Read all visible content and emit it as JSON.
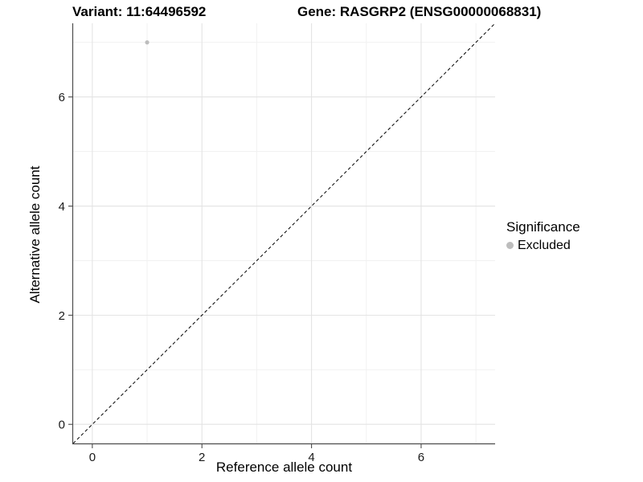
{
  "chart_data": {
    "type": "scatter",
    "title_left": "Variant: 11:64496592",
    "title_right": "Gene: RASGRP2 (ENSG00000068831)",
    "xlabel": "Reference allele count",
    "ylabel": "Alternative allele count",
    "xlim": [
      -0.35,
      7.35
    ],
    "ylim": [
      -0.35,
      7.35
    ],
    "x_major_ticks": [
      0,
      2,
      4,
      6
    ],
    "y_major_ticks": [
      0,
      2,
      4,
      6
    ],
    "x_minor_gridlines": [
      1,
      3,
      5,
      7
    ],
    "y_minor_gridlines": [
      1,
      3,
      5,
      7
    ],
    "grid": "major and minor, light gray on white panel",
    "reference_line": {
      "type": "identity y=x",
      "style": "dashed",
      "color": "#000000"
    },
    "series": [
      {
        "name": "Excluded",
        "color": "#bdbdbd",
        "points": [
          {
            "x": 1,
            "y": 7
          }
        ]
      }
    ],
    "legend": {
      "title": "Significance",
      "position": "right",
      "items": [
        {
          "label": "Excluded",
          "color": "#bdbdbd"
        }
      ]
    },
    "colors": {
      "point": "#bdbdbd",
      "grid_major": "#e3e3e3",
      "grid_minor": "#f1f1f1",
      "axis_line": "#4d4d4d",
      "tick_label": "#1a1a1a",
      "dashed_line": "#000000"
    }
  }
}
